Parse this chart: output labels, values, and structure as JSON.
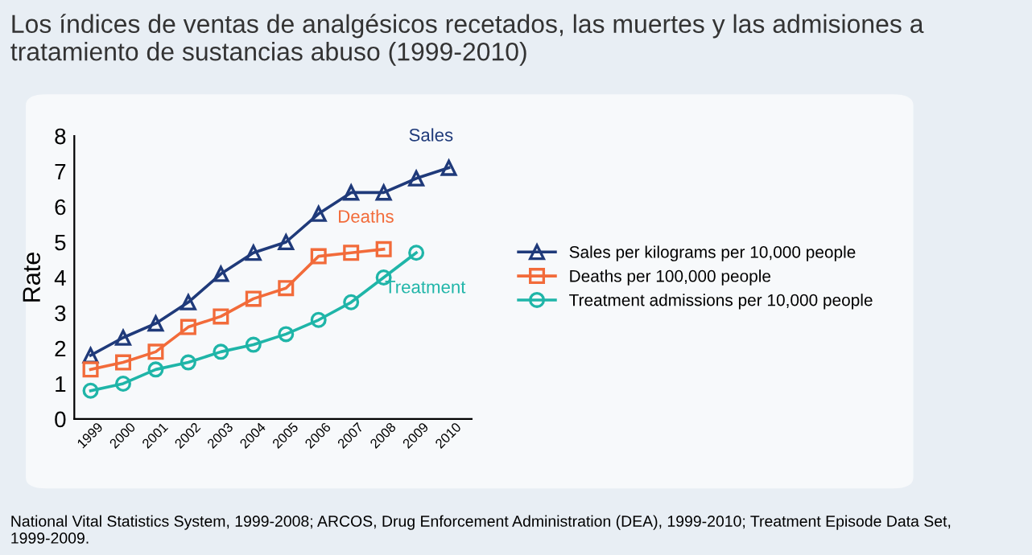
{
  "chart_data": {
    "type": "line",
    "title": "Los índices de ventas de analgésicos recetados, las muertes y las admisiones a tratamiento de sustancias abuso (1999-2010)",
    "ylabel": "Rate",
    "categories": [
      "1999",
      "2000",
      "2001",
      "2002",
      "2003",
      "2004",
      "2005",
      "2006",
      "2007",
      "2008",
      "2009",
      "2010"
    ],
    "series": [
      {
        "name": "Sales per kilograms per 10,000 people",
        "color": "#1f3a7a",
        "marker": "triangle",
        "values": [
          1.8,
          2.3,
          2.7,
          3.3,
          4.1,
          4.7,
          5.0,
          5.8,
          6.4,
          6.4,
          6.8,
          7.1
        ]
      },
      {
        "name": "Deaths per 100,000 people",
        "color": "#f26b3a",
        "marker": "square",
        "values": [
          1.4,
          1.6,
          1.9,
          2.6,
          2.9,
          3.4,
          3.7,
          4.6,
          4.7,
          4.8,
          null,
          null
        ]
      },
      {
        "name": "Treatment admissions per 10,000 people",
        "color": "#1fb5a8",
        "marker": "circle",
        "values": [
          0.8,
          1.0,
          1.4,
          1.6,
          1.9,
          2.1,
          2.4,
          2.8,
          3.3,
          4.0,
          4.7,
          null
        ]
      }
    ],
    "ylim": [
      0,
      8
    ],
    "yticks": [
      0,
      1,
      2,
      3,
      4,
      5,
      6,
      7,
      8
    ],
    "grid": false,
    "legend": "right",
    "line_style": "solid",
    "annotations": [
      {
        "text": "Sales",
        "x": "2010",
        "y": 7.1
      },
      {
        "text": "Deaths",
        "x": "2008",
        "y": 4.8
      },
      {
        "text": "Treatment",
        "x": "2009",
        "y": 4.7
      },
      "National Vital Statistics System, 1999-2008; ARCOS, Drug Enforcement Administration (DEA), 1999-2010; Treatment Episode Data Set, 1999-2009."
    ]
  }
}
